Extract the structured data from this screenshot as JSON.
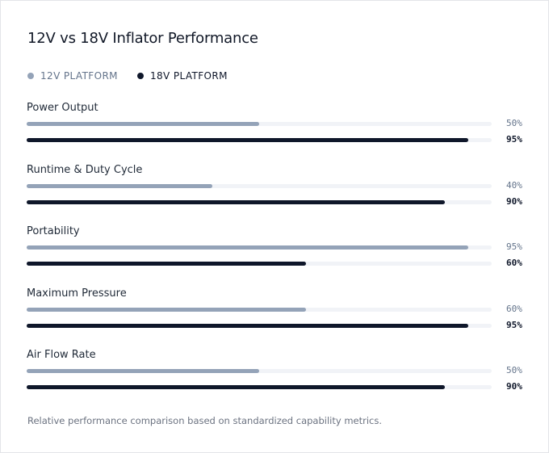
{
  "chart_data": {
    "type": "bar",
    "orientation": "horizontal",
    "title": "12V vs 18V Inflator Performance",
    "categories": [
      "Power Output",
      "Runtime & Duty Cycle",
      "Portability",
      "Maximum Pressure",
      "Air Flow Rate"
    ],
    "series": [
      {
        "name": "12V PLATFORM",
        "color": "#94a3b8",
        "values": [
          50,
          40,
          95,
          60,
          50
        ],
        "labels": [
          "50%",
          "40%",
          "95%",
          "60%",
          "50%"
        ]
      },
      {
        "name": "18V PLATFORM",
        "color": "#0f172a",
        "values": [
          95,
          90,
          60,
          95,
          90
        ],
        "labels": [
          "95%",
          "90%",
          "60%",
          "95%",
          "90%"
        ]
      }
    ],
    "xlim": [
      0,
      100
    ],
    "unit": "%",
    "grid": false,
    "legend": "top-left"
  },
  "footnote": "Relative performance comparison based on standardized capability metrics.",
  "colors": {
    "track": "#f1f3f7",
    "series1_text": "#64748b",
    "series2_text": "#0f172a"
  }
}
